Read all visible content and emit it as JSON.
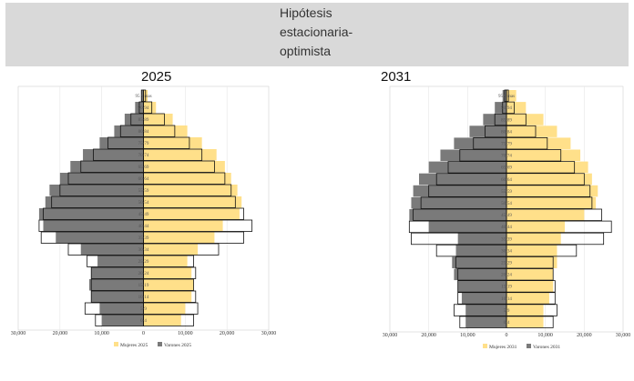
{
  "header": {
    "title_lines": [
      "Hipótesis",
      "estacionaria-",
      "optimista"
    ]
  },
  "colors": {
    "men": "#7a7a7a",
    "women": "#ffe08a",
    "outline": "#111111",
    "band": "#d9d9d9"
  },
  "chart_data": [
    {
      "type": "bar",
      "subtype": "population-pyramid",
      "title": "2025",
      "age_groups": [
        "0-4",
        "5-9",
        "10-14",
        "15-19",
        "20-24",
        "25-29",
        "30-34",
        "35-39",
        "40-44",
        "45-49",
        "50-54",
        "55-59",
        "60-64",
        "65-69",
        "70-74",
        "75-79",
        "80-84",
        "85-89",
        "90-94",
        "95 y mas"
      ],
      "series": [
        {
          "name": "Mujeres 2025",
          "side": "right",
          "values": [
            9000,
            10000,
            11500,
            12000,
            11500,
            10500,
            13000,
            17000,
            19000,
            23000,
            23500,
            22500,
            21000,
            19500,
            17500,
            14000,
            10500,
            7000,
            3000,
            1000
          ]
        },
        {
          "name": "Varones 2025",
          "side": "left",
          "values": [
            10000,
            10500,
            12500,
            13000,
            12500,
            11000,
            15000,
            21000,
            24000,
            25000,
            23500,
            22500,
            20000,
            17500,
            14500,
            10500,
            7000,
            4500,
            2000,
            500
          ]
        }
      ],
      "outline_2021": {
        "women": [
          12000,
          13000,
          12500,
          12000,
          12500,
          12000,
          18000,
          24000,
          26000,
          24000,
          22000,
          21000,
          19500,
          17000,
          14000,
          11000,
          7500,
          5000,
          2000,
          500
        ],
        "men": [
          11500,
          14000,
          12500,
          12500,
          12500,
          13500,
          18000,
          24500,
          25000,
          24000,
          22000,
          20000,
          18000,
          15000,
          12000,
          8500,
          5500,
          3000,
          1000,
          500
        ]
      },
      "x_ticks": [
        "30,000",
        "20,000",
        "10,000",
        "0",
        "10,000",
        "20,000",
        "30,000"
      ],
      "xlim": [
        -30000,
        30000
      ],
      "legend": [
        "Mujeres 2025",
        "Varones 2025"
      ],
      "legend_position": "bottom"
    },
    {
      "type": "bar",
      "subtype": "population-pyramid",
      "title": "2031",
      "age_groups": [
        "0-4",
        "5-9",
        "10-14",
        "15-19",
        "20-24",
        "25-29",
        "30-34",
        "35-39",
        "40-44",
        "45-49",
        "50-54",
        "55-59",
        "60-64",
        "65-69",
        "70-74",
        "75-79",
        "80-84",
        "85-89",
        "90-94",
        "95 y mas"
      ],
      "series": [
        {
          "name": "Mujeres 2031",
          "side": "right",
          "values": [
            9500,
            9500,
            11000,
            12000,
            12000,
            13000,
            13000,
            14000,
            15000,
            20000,
            23000,
            23500,
            22000,
            21000,
            19000,
            16500,
            13000,
            9500,
            5000,
            2500
          ]
        },
        {
          "name": "Varones 2031",
          "side": "left",
          "values": [
            10500,
            10500,
            11500,
            12500,
            13500,
            14000,
            13000,
            12500,
            20000,
            25000,
            24500,
            24000,
            22500,
            20000,
            17000,
            13500,
            9500,
            6000,
            3000,
            1000
          ]
        }
      ],
      "outline_2021": {
        "women": [
          12000,
          13000,
          12500,
          12500,
          12000,
          12000,
          18000,
          25000,
          27000,
          24500,
          22000,
          21500,
          20000,
          17500,
          14000,
          10500,
          7500,
          5000,
          2000,
          500
        ],
        "men": [
          12000,
          13500,
          12500,
          12500,
          12500,
          13000,
          18000,
          24500,
          25000,
          24000,
          22000,
          20000,
          18000,
          15000,
          12000,
          8500,
          5500,
          3000,
          1000,
          500
        ]
      },
      "x_ticks": [
        "30,000",
        "20,000",
        "10,000",
        "0",
        "10,000",
        "20,000",
        "30,000"
      ],
      "xlim": [
        -30000,
        30000
      ],
      "legend": [
        "Mujeres 2031",
        "Varones 2031"
      ],
      "legend_position": "bottom"
    }
  ]
}
